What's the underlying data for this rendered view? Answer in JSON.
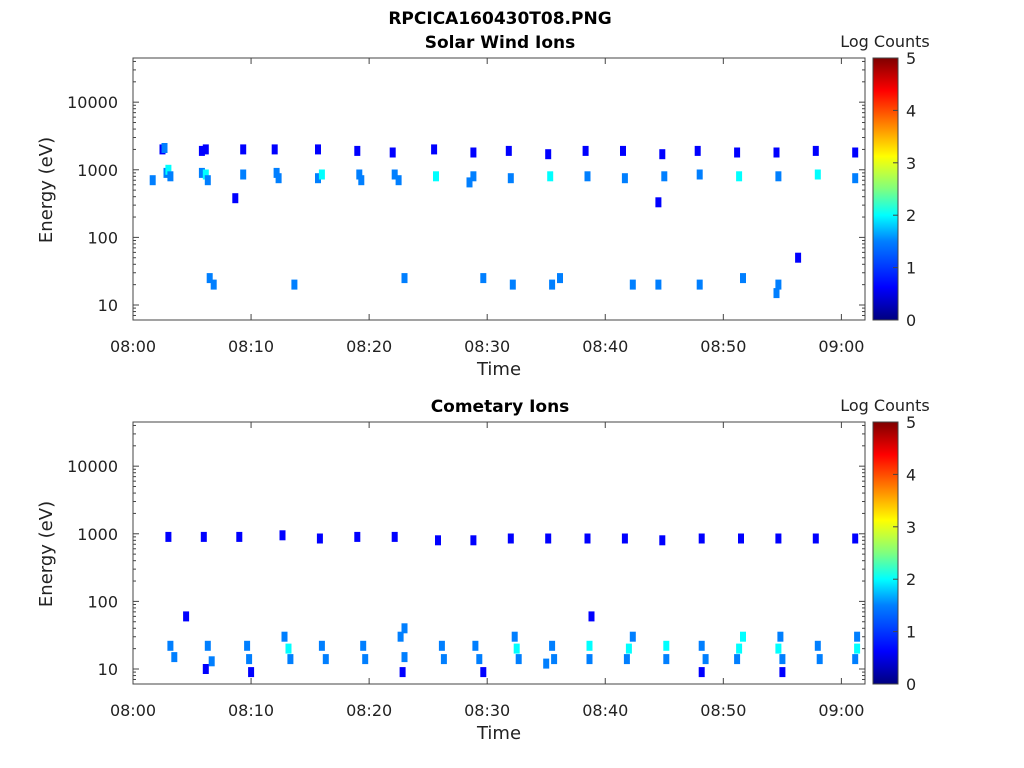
{
  "figure": {
    "title": "RPCICA160430T08.PNG"
  },
  "colormap": [
    "#00007f",
    "#0000ff",
    "#007fff",
    "#00ffff",
    "#7fff7f",
    "#ffff00",
    "#ff7f00",
    "#ff0000",
    "#7f0000"
  ],
  "chart_data": [
    {
      "type": "heatmap",
      "title": "Solar Wind Ions",
      "xlabel": "Time",
      "ylabel": "Energy (eV)",
      "xscale": "time",
      "yscale": "log",
      "xlim": [
        "08:00",
        "09:02"
      ],
      "ylim": [
        6,
        45000
      ],
      "xticks": [
        "08:00",
        "08:10",
        "08:20",
        "08:30",
        "08:40",
        "08:50",
        "09:00"
      ],
      "yticks": [
        10,
        100,
        1000,
        10000
      ],
      "yticklabels": [
        "10",
        "100",
        "1000",
        "10000"
      ],
      "colorbar": {
        "label": "Log Counts",
        "range": [
          0,
          5
        ],
        "ticks": [
          "0",
          "1",
          "2",
          "3",
          "4",
          "5"
        ]
      },
      "cells": [
        [
          "08:01:40",
          700,
          1
        ],
        [
          "08:02:30",
          2000,
          0.8
        ],
        [
          "08:02:40",
          2100,
          1
        ],
        [
          "08:02:50",
          900,
          1.3
        ],
        [
          "08:03:00",
          1000,
          1.6
        ],
        [
          "08:03:10",
          800,
          1.2
        ],
        [
          "08:05:50",
          1900,
          0.8
        ],
        [
          "08:06:10",
          2000,
          0.9
        ],
        [
          "08:05:50",
          900,
          1.3
        ],
        [
          "08:06:10",
          850,
          1.8
        ],
        [
          "08:06:20",
          700,
          1.0
        ],
        [
          "08:06:30",
          25,
          1
        ],
        [
          "08:06:50",
          20,
          1
        ],
        [
          "08:08:40",
          380,
          0.6
        ],
        [
          "08:09:20",
          2000,
          0.8
        ],
        [
          "08:09:20",
          850,
          1.5
        ],
        [
          "08:12:00",
          2000,
          0.9
        ],
        [
          "08:12:10",
          900,
          1.4
        ],
        [
          "08:12:20",
          750,
          1.1
        ],
        [
          "08:13:40",
          20,
          1
        ],
        [
          "08:15:40",
          2000,
          0.8
        ],
        [
          "08:15:40",
          750,
          1.4
        ],
        [
          "08:16:00",
          850,
          1.7
        ],
        [
          "08:19:00",
          1900,
          0.8
        ],
        [
          "08:19:10",
          850,
          1.5
        ],
        [
          "08:19:20",
          700,
          1.2
        ],
        [
          "08:22:00",
          1800,
          0.8
        ],
        [
          "08:22:10",
          850,
          1.1
        ],
        [
          "08:22:30",
          700,
          1.3
        ],
        [
          "08:23:00",
          25,
          1
        ],
        [
          "08:25:30",
          2000,
          0.9
        ],
        [
          "08:25:40",
          800,
          1.6
        ],
        [
          "08:28:50",
          1800,
          0.8
        ],
        [
          "08:28:50",
          800,
          1.4
        ],
        [
          "08:28:30",
          650,
          1.0
        ],
        [
          "08:29:40",
          25,
          1
        ],
        [
          "08:31:50",
          1900,
          0.8
        ],
        [
          "08:32:00",
          750,
          1.3
        ],
        [
          "08:32:10",
          20,
          1
        ],
        [
          "08:35:10",
          1700,
          0.8
        ],
        [
          "08:35:20",
          800,
          1.7
        ],
        [
          "08:35:30",
          20,
          1
        ],
        [
          "08:36:10",
          25,
          1
        ],
        [
          "08:38:20",
          1900,
          0.8
        ],
        [
          "08:38:30",
          800,
          1.4
        ],
        [
          "08:41:30",
          1900,
          0.9
        ],
        [
          "08:41:40",
          750,
          1.5
        ],
        [
          "08:42:20",
          20,
          1
        ],
        [
          "08:44:30",
          330,
          0.6
        ],
        [
          "08:44:50",
          1700,
          0.8
        ],
        [
          "08:45:00",
          800,
          1.3
        ],
        [
          "08:44:30",
          20,
          1
        ],
        [
          "08:47:50",
          1900,
          0.8
        ],
        [
          "08:48:00",
          850,
          1.4
        ],
        [
          "08:48:00",
          20,
          1
        ],
        [
          "08:51:10",
          1800,
          0.8
        ],
        [
          "08:51:20",
          800,
          1.6
        ],
        [
          "08:51:40",
          25,
          1
        ],
        [
          "08:54:30",
          1800,
          0.9
        ],
        [
          "08:54:40",
          800,
          1.5
        ],
        [
          "08:54:40",
          20,
          1
        ],
        [
          "08:54:30",
          15,
          1
        ],
        [
          "08:56:20",
          50,
          0.6
        ],
        [
          "08:57:50",
          1900,
          0.8
        ],
        [
          "08:58:00",
          850,
          1.9
        ],
        [
          "09:01:10",
          1800,
          0.8
        ],
        [
          "09:01:10",
          750,
          1.3
        ]
      ]
    },
    {
      "type": "heatmap",
      "title": "Cometary Ions",
      "xlabel": "Time",
      "ylabel": "Energy (eV)",
      "xscale": "time",
      "yscale": "log",
      "xlim": [
        "08:00",
        "09:02"
      ],
      "ylim": [
        6,
        45000
      ],
      "xticks": [
        "08:00",
        "08:10",
        "08:20",
        "08:30",
        "08:40",
        "08:50",
        "09:00"
      ],
      "yticks": [
        10,
        100,
        1000,
        10000
      ],
      "yticklabels": [
        "10",
        "100",
        "1000",
        "10000"
      ],
      "colorbar": {
        "label": "Log Counts",
        "range": [
          0,
          5
        ],
        "ticks": [
          "0",
          "1",
          "2",
          "3",
          "4",
          "5"
        ]
      },
      "cells": [
        [
          "08:03:00",
          900,
          0.8
        ],
        [
          "08:04:30",
          60,
          0.6
        ],
        [
          "08:03:10",
          22,
          1.2
        ],
        [
          "08:03:30",
          15,
          1.1
        ],
        [
          "08:06:00",
          900,
          0.8
        ],
        [
          "08:06:20",
          22,
          1.3
        ],
        [
          "08:06:40",
          13,
          1.0
        ],
        [
          "08:06:10",
          10,
          0.9
        ],
        [
          "08:09:00",
          900,
          0.7
        ],
        [
          "08:09:40",
          22,
          1.1
        ],
        [
          "08:09:50",
          14,
          1.2
        ],
        [
          "08:10:00",
          9,
          0.9
        ],
        [
          "08:12:40",
          950,
          0.8
        ],
        [
          "08:12:50",
          30,
          1.4
        ],
        [
          "08:13:10",
          20,
          1.9
        ],
        [
          "08:13:20",
          14,
          1.5
        ],
        [
          "08:15:50",
          850,
          0.8
        ],
        [
          "08:16:00",
          22,
          1.2
        ],
        [
          "08:16:20",
          14,
          1.1
        ],
        [
          "08:19:00",
          900,
          0.8
        ],
        [
          "08:19:30",
          22,
          1.3
        ],
        [
          "08:19:40",
          14,
          1.0
        ],
        [
          "08:22:10",
          900,
          0.7
        ],
        [
          "08:22:40",
          30,
          1.3
        ],
        [
          "08:23:00",
          40,
          1.1
        ],
        [
          "08:23:00",
          15,
          1.2
        ],
        [
          "08:22:50",
          9,
          0.9
        ],
        [
          "08:25:50",
          800,
          0.7
        ],
        [
          "08:26:10",
          22,
          1.5
        ],
        [
          "08:26:20",
          14,
          1.2
        ],
        [
          "08:28:50",
          800,
          0.7
        ],
        [
          "08:29:00",
          22,
          1.3
        ],
        [
          "08:29:20",
          14,
          1.1
        ],
        [
          "08:29:40",
          9,
          0.9
        ],
        [
          "08:32:00",
          850,
          0.7
        ],
        [
          "08:32:20",
          30,
          1.4
        ],
        [
          "08:32:30",
          20,
          1.7
        ],
        [
          "08:32:40",
          14,
          1.1
        ],
        [
          "08:35:10",
          850,
          0.8
        ],
        [
          "08:35:30",
          22,
          1.5
        ],
        [
          "08:35:40",
          14,
          1.2
        ],
        [
          "08:35:00",
          12,
          1.0
        ],
        [
          "08:38:30",
          850,
          0.7
        ],
        [
          "08:38:50",
          60,
          0.6
        ],
        [
          "08:38:40",
          22,
          1.6
        ],
        [
          "08:38:40",
          14,
          1.2
        ],
        [
          "08:41:40",
          850,
          0.7
        ],
        [
          "08:42:20",
          30,
          1.5
        ],
        [
          "08:42:00",
          20,
          1.8
        ],
        [
          "08:41:50",
          14,
          1.3
        ],
        [
          "08:44:50",
          800,
          0.7
        ],
        [
          "08:45:10",
          22,
          1.6
        ],
        [
          "08:45:10",
          14,
          1.4
        ],
        [
          "08:48:10",
          850,
          0.7
        ],
        [
          "08:48:10",
          22,
          1.5
        ],
        [
          "08:48:30",
          14,
          1.2
        ],
        [
          "08:48:10",
          9,
          0.9
        ],
        [
          "08:51:30",
          850,
          0.8
        ],
        [
          "08:51:40",
          30,
          2.0
        ],
        [
          "08:51:20",
          20,
          1.6
        ],
        [
          "08:51:10",
          14,
          1.3
        ],
        [
          "08:54:40",
          850,
          0.8
        ],
        [
          "08:54:50",
          30,
          1.3
        ],
        [
          "08:54:40",
          20,
          1.6
        ],
        [
          "08:55:00",
          14,
          1.2
        ],
        [
          "08:55:00",
          9,
          0.9
        ],
        [
          "08:57:50",
          850,
          0.8
        ],
        [
          "08:58:00",
          22,
          1.4
        ],
        [
          "08:58:10",
          14,
          1.1
        ],
        [
          "09:01:10",
          850,
          0.7
        ],
        [
          "09:01:20",
          30,
          1.4
        ],
        [
          "09:01:20",
          20,
          1.8
        ],
        [
          "09:01:10",
          14,
          1.3
        ]
      ]
    }
  ]
}
